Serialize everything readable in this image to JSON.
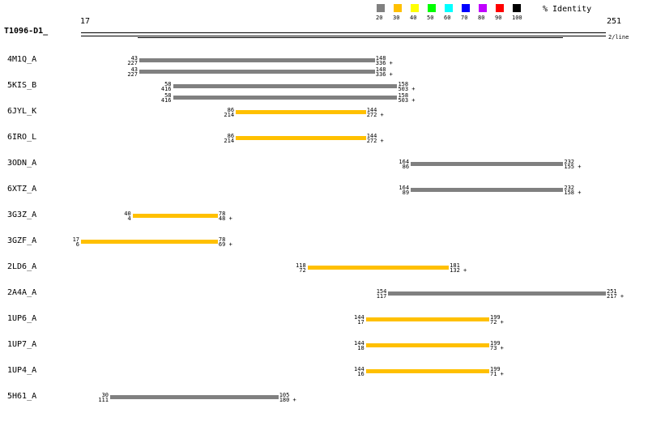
{
  "query": {
    "name": "T1096-D1_",
    "start": "17",
    "end": "251",
    "lines_note": "2/line"
  },
  "legend": {
    "title": "% Identity",
    "items": [
      {
        "label": "20",
        "color": "#808080"
      },
      {
        "label": "30",
        "color": "#ffc000"
      },
      {
        "label": "40",
        "color": "#ffff00"
      },
      {
        "label": "50",
        "color": "#00ff00"
      },
      {
        "label": "60",
        "color": "#00ffff"
      },
      {
        "label": "70",
        "color": "#0000ff"
      },
      {
        "label": "80",
        "color": "#c000ff"
      },
      {
        "label": "90",
        "color": "#ff0000"
      },
      {
        "label": "100",
        "color": "#000000"
      }
    ]
  },
  "hits": [
    {
      "name": "4M1Q_A",
      "color": "#808080",
      "bars": [
        {
          "qs": 43,
          "qe": 148,
          "ss": 227,
          "se": 336
        },
        {
          "qs": 43,
          "qe": 148,
          "ss": 227,
          "se": 336
        }
      ]
    },
    {
      "name": "5KIS_B",
      "color": "#808080",
      "bars": [
        {
          "qs": 58,
          "qe": 158,
          "ss": 416,
          "se": 503
        },
        {
          "qs": 58,
          "qe": 158,
          "ss": 416,
          "se": 503
        }
      ]
    },
    {
      "name": "6JYL_K",
      "color": "#ffc000",
      "bars": [
        {
          "qs": 86,
          "qe": 144,
          "ss": 214,
          "se": 272
        }
      ]
    },
    {
      "name": "6IRO_L",
      "color": "#ffc000",
      "bars": [
        {
          "qs": 86,
          "qe": 144,
          "ss": 214,
          "se": 272
        }
      ]
    },
    {
      "name": "3ODN_A",
      "color": "#808080",
      "bars": [
        {
          "qs": 164,
          "qe": 232,
          "ss": 86,
          "se": 155
        }
      ]
    },
    {
      "name": "6XTZ_A",
      "color": "#808080",
      "bars": [
        {
          "qs": 164,
          "qe": 232,
          "ss": 89,
          "se": 158
        }
      ]
    },
    {
      "name": "3G3Z_A",
      "color": "#ffc000",
      "bars": [
        {
          "qs": 40,
          "qe": 78,
          "ss": 4,
          "se": 48
        }
      ]
    },
    {
      "name": "3GZF_A",
      "color": "#ffc000",
      "bars": [
        {
          "qs": 17,
          "qe": 78,
          "ss": 6,
          "se": 69
        }
      ]
    },
    {
      "name": "2LD6_A",
      "color": "#ffc000",
      "bars": [
        {
          "qs": 118,
          "qe": 181,
          "ss": 72,
          "se": 132
        }
      ]
    },
    {
      "name": "2A4A_A",
      "color": "#808080",
      "bars": [
        {
          "qs": 154,
          "qe": 251,
          "ss": 117,
          "se": 217
        }
      ]
    },
    {
      "name": "1UP6_A",
      "color": "#ffc000",
      "bars": [
        {
          "qs": 144,
          "qe": 199,
          "ss": 17,
          "se": 72
        }
      ]
    },
    {
      "name": "1UP7_A",
      "color": "#ffc000",
      "bars": [
        {
          "qs": 144,
          "qe": 199,
          "ss": 18,
          "se": 73
        }
      ]
    },
    {
      "name": "1UP4_A",
      "color": "#ffc000",
      "bars": [
        {
          "qs": 144,
          "qe": 199,
          "ss": 16,
          "se": 71
        }
      ]
    },
    {
      "name": "5H61_A",
      "color": "#808080",
      "bars": [
        {
          "qs": 30,
          "qe": 105,
          "ss": 111,
          "se": 180
        }
      ]
    }
  ]
}
